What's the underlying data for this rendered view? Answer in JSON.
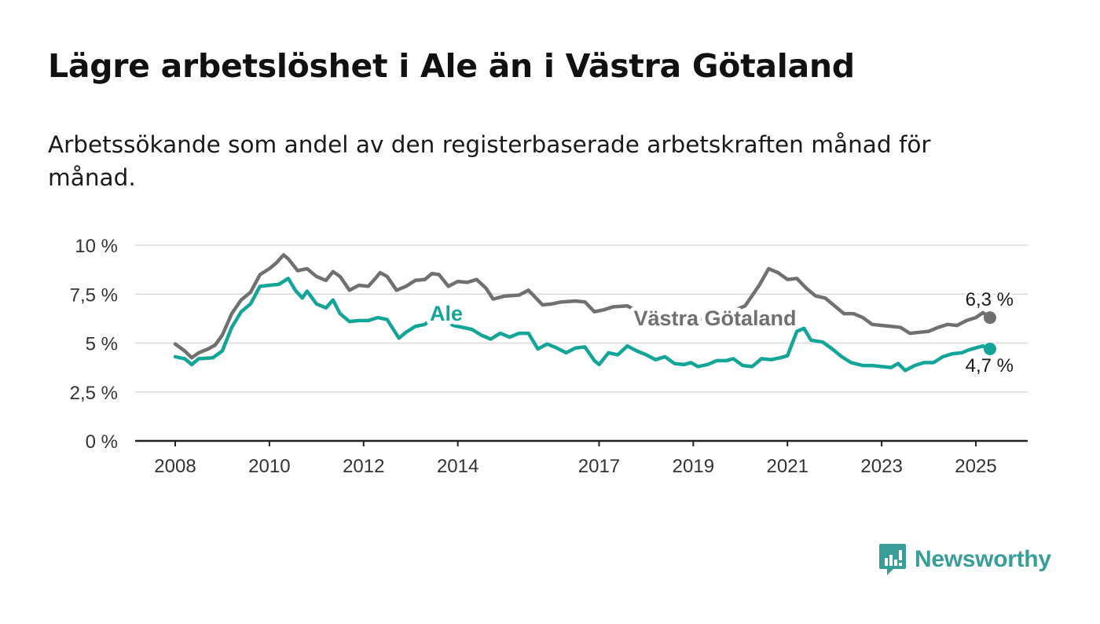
{
  "header": {
    "title": "Lägre arbetslöshet i Ale än i Västra Götaland",
    "subtitle": "Arbetssökande som andel av den registerbaserade arbetskraften månad för månad."
  },
  "brand": {
    "name": "Newsworthy",
    "icon": "newsworthy-logo-icon",
    "color": "#3a9e98"
  },
  "chart_data": {
    "type": "line",
    "title": "Lägre arbetslöshet i Ale än i Västra Götaland",
    "xlabel": "",
    "ylabel": "",
    "xlim": [
      2008,
      2025.3
    ],
    "ylim": [
      0,
      10
    ],
    "yticks": [
      0,
      2.5,
      5,
      7.5,
      10
    ],
    "ytick_labels": [
      "0 %",
      "2,5 %",
      "5 %",
      "7,5 %",
      "10 %"
    ],
    "xticks": [
      2008,
      2010,
      2012,
      2014,
      2017,
      2019,
      2021,
      2023,
      2025
    ],
    "xtick_labels": [
      "2008",
      "2010",
      "2012",
      "2014",
      "2017",
      "2019",
      "2021",
      "2023",
      "2025"
    ],
    "grid": true,
    "series": [
      {
        "name": "Västra Götaland",
        "color": "#707070",
        "end_label": "6,3 %",
        "points": [
          [
            2008.0,
            4.95
          ],
          [
            2008.2,
            4.6
          ],
          [
            2008.35,
            4.25
          ],
          [
            2008.5,
            4.5
          ],
          [
            2008.7,
            4.7
          ],
          [
            2008.85,
            4.9
          ],
          [
            2009.0,
            5.4
          ],
          [
            2009.2,
            6.5
          ],
          [
            2009.4,
            7.2
          ],
          [
            2009.6,
            7.6
          ],
          [
            2009.8,
            8.5
          ],
          [
            2010.0,
            8.8
          ],
          [
            2010.15,
            9.1
          ],
          [
            2010.3,
            9.5
          ],
          [
            2010.4,
            9.3
          ],
          [
            2010.6,
            8.7
          ],
          [
            2010.8,
            8.8
          ],
          [
            2011.0,
            8.4
          ],
          [
            2011.2,
            8.2
          ],
          [
            2011.35,
            8.65
          ],
          [
            2011.5,
            8.4
          ],
          [
            2011.7,
            7.7
          ],
          [
            2011.9,
            7.95
          ],
          [
            2012.1,
            7.9
          ],
          [
            2012.25,
            8.3
          ],
          [
            2012.35,
            8.6
          ],
          [
            2012.5,
            8.4
          ],
          [
            2012.7,
            7.7
          ],
          [
            2012.9,
            7.9
          ],
          [
            2013.1,
            8.2
          ],
          [
            2013.3,
            8.25
          ],
          [
            2013.45,
            8.55
          ],
          [
            2013.6,
            8.5
          ],
          [
            2013.8,
            7.9
          ],
          [
            2014.0,
            8.15
          ],
          [
            2014.2,
            8.1
          ],
          [
            2014.4,
            8.25
          ],
          [
            2014.6,
            7.8
          ],
          [
            2014.75,
            7.25
          ],
          [
            2015.0,
            7.4
          ],
          [
            2015.3,
            7.45
          ],
          [
            2015.5,
            7.7
          ],
          [
            2015.8,
            6.95
          ],
          [
            2016.0,
            7.0
          ],
          [
            2016.2,
            7.1
          ],
          [
            2016.5,
            7.15
          ],
          [
            2016.7,
            7.1
          ],
          [
            2016.9,
            6.6
          ],
          [
            2017.1,
            6.7
          ],
          [
            2017.3,
            6.85
          ],
          [
            2017.6,
            6.9
          ],
          [
            2017.8,
            6.65
          ],
          [
            2018.0,
            6.4
          ],
          [
            2018.3,
            6.3
          ],
          [
            2018.6,
            6.2
          ],
          [
            2018.9,
            6.15
          ],
          [
            2019.2,
            6.2
          ],
          [
            2019.5,
            6.35
          ],
          [
            2019.8,
            6.6
          ],
          [
            2020.1,
            6.9
          ],
          [
            2020.4,
            7.95
          ],
          [
            2020.6,
            8.8
          ],
          [
            2020.8,
            8.6
          ],
          [
            2021.0,
            8.25
          ],
          [
            2021.2,
            8.3
          ],
          [
            2021.4,
            7.8
          ],
          [
            2021.6,
            7.4
          ],
          [
            2021.8,
            7.3
          ],
          [
            2022.0,
            6.9
          ],
          [
            2022.2,
            6.5
          ],
          [
            2022.4,
            6.5
          ],
          [
            2022.6,
            6.3
          ],
          [
            2022.8,
            5.95
          ],
          [
            2023.0,
            5.9
          ],
          [
            2023.2,
            5.85
          ],
          [
            2023.4,
            5.8
          ],
          [
            2023.6,
            5.5
          ],
          [
            2023.8,
            5.55
          ],
          [
            2024.0,
            5.6
          ],
          [
            2024.2,
            5.8
          ],
          [
            2024.4,
            5.95
          ],
          [
            2024.6,
            5.9
          ],
          [
            2024.8,
            6.15
          ],
          [
            2025.0,
            6.3
          ],
          [
            2025.15,
            6.55
          ],
          [
            2025.3,
            6.3
          ]
        ]
      },
      {
        "name": "Ale",
        "color": "#14a599",
        "end_label": "4,7 %",
        "points": [
          [
            2008.0,
            4.3
          ],
          [
            2008.2,
            4.2
          ],
          [
            2008.35,
            3.9
          ],
          [
            2008.5,
            4.2
          ],
          [
            2008.8,
            4.25
          ],
          [
            2009.0,
            4.6
          ],
          [
            2009.2,
            5.8
          ],
          [
            2009.4,
            6.6
          ],
          [
            2009.6,
            7.0
          ],
          [
            2009.8,
            7.9
          ],
          [
            2010.0,
            7.95
          ],
          [
            2010.2,
            8.0
          ],
          [
            2010.4,
            8.3
          ],
          [
            2010.55,
            7.7
          ],
          [
            2010.7,
            7.3
          ],
          [
            2010.8,
            7.65
          ],
          [
            2011.0,
            7.0
          ],
          [
            2011.2,
            6.8
          ],
          [
            2011.35,
            7.2
          ],
          [
            2011.5,
            6.5
          ],
          [
            2011.7,
            6.1
          ],
          [
            2011.9,
            6.15
          ],
          [
            2012.1,
            6.15
          ],
          [
            2012.3,
            6.3
          ],
          [
            2012.5,
            6.2
          ],
          [
            2012.75,
            5.25
          ],
          [
            2012.9,
            5.55
          ],
          [
            2013.1,
            5.85
          ],
          [
            2013.3,
            5.95
          ],
          [
            2013.5,
            6.35
          ],
          [
            2013.7,
            6.3
          ],
          [
            2013.9,
            5.9
          ],
          [
            2014.1,
            5.8
          ],
          [
            2014.3,
            5.7
          ],
          [
            2014.5,
            5.4
          ],
          [
            2014.7,
            5.2
          ],
          [
            2014.9,
            5.5
          ],
          [
            2015.1,
            5.3
          ],
          [
            2015.3,
            5.5
          ],
          [
            2015.5,
            5.5
          ],
          [
            2015.7,
            4.7
          ],
          [
            2015.9,
            4.95
          ],
          [
            2016.1,
            4.75
          ],
          [
            2016.3,
            4.5
          ],
          [
            2016.5,
            4.75
          ],
          [
            2016.7,
            4.8
          ],
          [
            2016.9,
            4.1
          ],
          [
            2017.0,
            3.9
          ],
          [
            2017.2,
            4.5
          ],
          [
            2017.4,
            4.4
          ],
          [
            2017.6,
            4.85
          ],
          [
            2017.8,
            4.6
          ],
          [
            2018.0,
            4.4
          ],
          [
            2018.2,
            4.15
          ],
          [
            2018.4,
            4.3
          ],
          [
            2018.6,
            3.95
          ],
          [
            2018.8,
            3.9
          ],
          [
            2018.95,
            4.0
          ],
          [
            2019.1,
            3.8
          ],
          [
            2019.3,
            3.9
          ],
          [
            2019.5,
            4.1
          ],
          [
            2019.7,
            4.1
          ],
          [
            2019.85,
            4.2
          ],
          [
            2020.05,
            3.85
          ],
          [
            2020.25,
            3.8
          ],
          [
            2020.45,
            4.2
          ],
          [
            2020.65,
            4.15
          ],
          [
            2020.85,
            4.25
          ],
          [
            2021.0,
            4.35
          ],
          [
            2021.2,
            5.6
          ],
          [
            2021.35,
            5.75
          ],
          [
            2021.5,
            5.15
          ],
          [
            2021.75,
            5.05
          ],
          [
            2021.95,
            4.7
          ],
          [
            2022.15,
            4.3
          ],
          [
            2022.35,
            4.0
          ],
          [
            2022.6,
            3.85
          ],
          [
            2022.8,
            3.85
          ],
          [
            2023.0,
            3.8
          ],
          [
            2023.2,
            3.75
          ],
          [
            2023.35,
            3.95
          ],
          [
            2023.5,
            3.6
          ],
          [
            2023.7,
            3.85
          ],
          [
            2023.9,
            4.0
          ],
          [
            2024.1,
            4.0
          ],
          [
            2024.3,
            4.3
          ],
          [
            2024.5,
            4.45
          ],
          [
            2024.7,
            4.5
          ],
          [
            2024.85,
            4.65
          ],
          [
            2025.0,
            4.75
          ],
          [
            2025.15,
            4.85
          ],
          [
            2025.3,
            4.7
          ]
        ]
      }
    ],
    "annotations": [
      {
        "text": "Ale",
        "series": "Ale",
        "color": "#14a599"
      },
      {
        "text": "Västra Götaland",
        "series": "Västra Götaland",
        "color": "#707070"
      }
    ]
  }
}
